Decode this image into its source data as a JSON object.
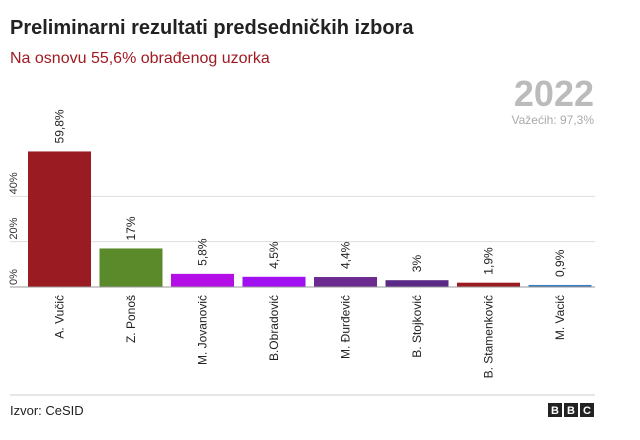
{
  "chart_data": {
    "type": "bar",
    "title": "Preliminarni rezultati predsedničkih izbora",
    "subtitle": "Na osnovu 55,6% obrađenog uzorka",
    "year": "2022",
    "note": "Važećih: 97,3%",
    "source": "Izvor: CeSID",
    "logo": [
      "B",
      "B",
      "C"
    ],
    "categories": [
      "A. Vučić",
      "Z. Ponoš",
      "M. Jovanović",
      "B.Obradović",
      "M. Đurđević",
      "B. Stojković",
      "B. Stamenković",
      "M. Vacić"
    ],
    "values": [
      59.8,
      17,
      5.8,
      4.5,
      4.4,
      3,
      1.9,
      0.9
    ],
    "value_labels": [
      "59,8%",
      "17%",
      "5,8%",
      "4,5%",
      "4,4%",
      "3%",
      "1,9%",
      "0,9%"
    ],
    "colors": [
      "#9b1b22",
      "#5b8a2b",
      "#b30ee6",
      "#a010f0",
      "#6a2a8e",
      "#5b2a86",
      "#9b1b22",
      "#3a7dc0"
    ],
    "ylim": [
      0,
      60
    ],
    "yticks": [
      {
        "value": 0,
        "label": "0%"
      },
      {
        "value": 20,
        "label": "20%"
      },
      {
        "value": 40,
        "label": "40%"
      }
    ],
    "grid": true
  }
}
